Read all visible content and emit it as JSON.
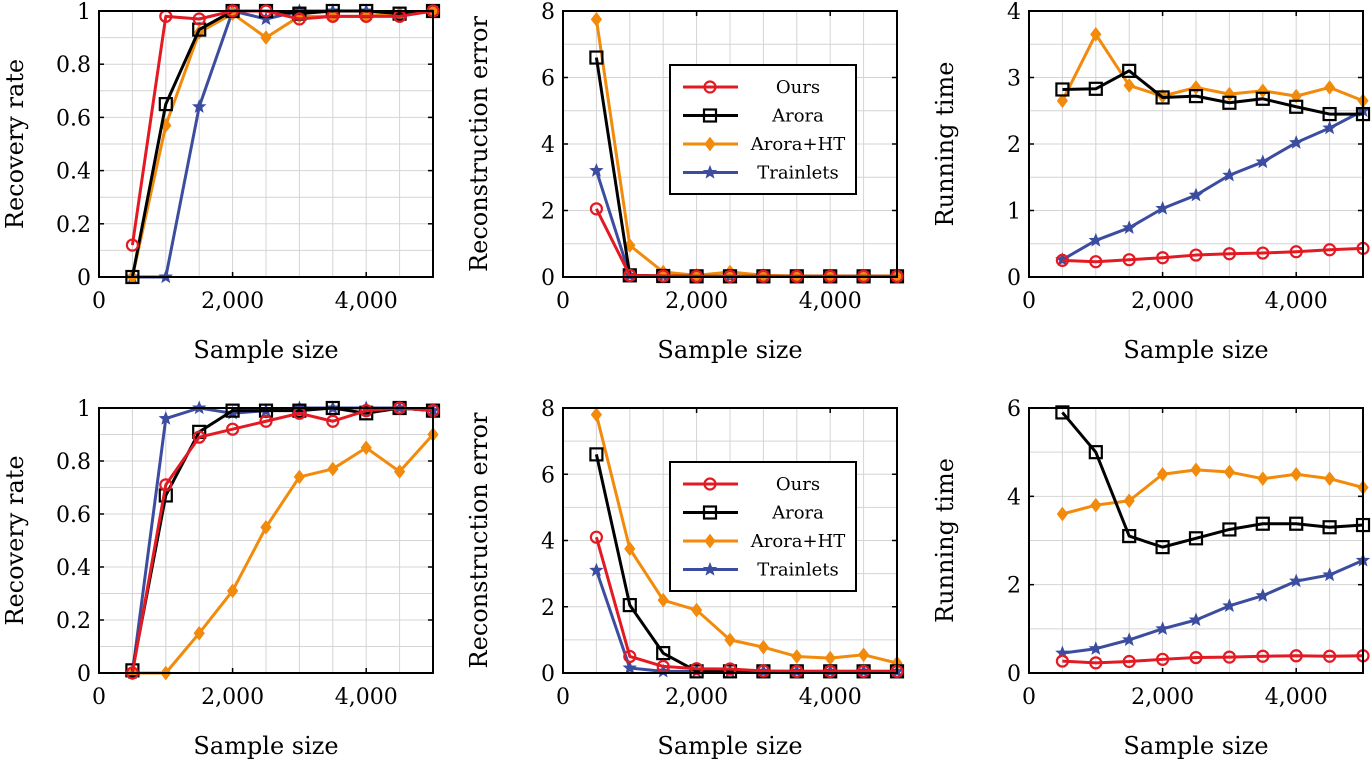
{
  "colors": {
    "Ours": "#e31a23",
    "Arora": "#000000",
    "Arora+HT": "#f28a0c",
    "Trainlets": "#3c4da0"
  },
  "markers": {
    "Ours": "circle",
    "Arora": "square",
    "Arora+HT": "diamond",
    "Trainlets": "star"
  },
  "chart_data": [
    {
      "type": "line",
      "xlabel": "Sample size",
      "ylabel": "Recovery rate",
      "xlim": [
        0,
        5000
      ],
      "ylim": [
        0,
        1
      ],
      "xticks": [
        0,
        2000,
        4000
      ],
      "xtick_labels": [
        "0",
        "2,000",
        "4,000"
      ],
      "yticks": [
        0,
        0.2,
        0.4,
        0.6,
        0.8,
        1
      ],
      "ytick_labels": [
        "0",
        "0.2",
        "0.4",
        "0.6",
        "0.8",
        "1"
      ],
      "x": [
        500,
        1000,
        1500,
        2000,
        2500,
        3000,
        3500,
        4000,
        4500,
        5000
      ],
      "legend": null,
      "series": [
        {
          "name": "Ours",
          "values": [
            0.12,
            0.98,
            0.97,
            1.0,
            1.0,
            0.97,
            0.98,
            0.98,
            0.98,
            1.0
          ]
        },
        {
          "name": "Arora",
          "values": [
            0.0,
            0.65,
            0.93,
            1.0,
            1.0,
            0.99,
            1.0,
            1.0,
            0.99,
            1.0
          ]
        },
        {
          "name": "Arora+HT",
          "values": [
            0.0,
            0.57,
            0.92,
            0.99,
            0.9,
            0.98,
            0.98,
            0.98,
            0.99,
            1.0
          ]
        },
        {
          "name": "Trainlets",
          "values": [
            0.0,
            0.0,
            0.64,
            1.0,
            0.97,
            1.0,
            1.0,
            1.0,
            0.99,
            1.0
          ]
        }
      ]
    },
    {
      "type": "line",
      "xlabel": "Sample size",
      "ylabel": "Reconstruction error",
      "xlim": [
        0,
        5000
      ],
      "ylim": [
        0,
        8
      ],
      "xticks": [
        0,
        2000,
        4000
      ],
      "xtick_labels": [
        "0",
        "2,000",
        "4,000"
      ],
      "yticks": [
        0,
        2,
        4,
        6,
        8
      ],
      "ytick_labels": [
        "0",
        "2",
        "4",
        "6",
        "8"
      ],
      "x": [
        500,
        1000,
        1500,
        2000,
        2500,
        3000,
        3500,
        4000,
        4500,
        5000
      ],
      "legend": "top-right",
      "series": [
        {
          "name": "Ours",
          "values": [
            2.05,
            0.05,
            0.03,
            0.02,
            0.02,
            0.02,
            0.02,
            0.02,
            0.02,
            0.02
          ]
        },
        {
          "name": "Arora",
          "values": [
            6.6,
            0.05,
            0.03,
            0.02,
            0.02,
            0.02,
            0.02,
            0.02,
            0.02,
            0.02
          ]
        },
        {
          "name": "Arora+HT",
          "values": [
            7.75,
            0.95,
            0.15,
            0.05,
            0.15,
            0.05,
            0.03,
            0.03,
            0.03,
            0.03
          ]
        },
        {
          "name": "Trainlets",
          "values": [
            3.2,
            0.05,
            0.03,
            0.02,
            0.02,
            0.02,
            0.02,
            0.02,
            0.02,
            0.02
          ]
        }
      ]
    },
    {
      "type": "line",
      "xlabel": "Sample size",
      "ylabel": "Running time",
      "xlim": [
        0,
        5000
      ],
      "ylim": [
        0,
        4
      ],
      "xticks": [
        0,
        2000,
        4000
      ],
      "xtick_labels": [
        "0",
        "2,000",
        "4,000"
      ],
      "yticks": [
        0,
        1,
        2,
        3,
        4
      ],
      "ytick_labels": [
        "0",
        "1",
        "2",
        "3",
        "4"
      ],
      "x": [
        500,
        1000,
        1500,
        2000,
        2500,
        3000,
        3500,
        4000,
        4500,
        5000
      ],
      "legend": null,
      "series": [
        {
          "name": "Ours",
          "values": [
            0.25,
            0.23,
            0.26,
            0.29,
            0.33,
            0.35,
            0.36,
            0.38,
            0.41,
            0.43
          ]
        },
        {
          "name": "Arora",
          "values": [
            2.82,
            2.83,
            3.1,
            2.7,
            2.72,
            2.62,
            2.68,
            2.56,
            2.45,
            2.45
          ]
        },
        {
          "name": "Arora+HT",
          "values": [
            2.65,
            3.65,
            2.88,
            2.72,
            2.85,
            2.75,
            2.8,
            2.72,
            2.85,
            2.65
          ]
        },
        {
          "name": "Trainlets",
          "values": [
            0.26,
            0.55,
            0.74,
            1.03,
            1.23,
            1.53,
            1.73,
            2.02,
            2.24,
            2.5
          ]
        }
      ]
    },
    {
      "type": "line",
      "xlabel": "Sample size",
      "ylabel": "Recovery rate",
      "xlim": [
        0,
        5000
      ],
      "ylim": [
        0,
        1
      ],
      "xticks": [
        0,
        2000,
        4000
      ],
      "xtick_labels": [
        "0",
        "2,000",
        "4,000"
      ],
      "yticks": [
        0,
        0.2,
        0.4,
        0.6,
        0.8,
        1
      ],
      "ytick_labels": [
        "0",
        "0.2",
        "0.4",
        "0.6",
        "0.8",
        "1"
      ],
      "x": [
        500,
        1000,
        1500,
        2000,
        2500,
        3000,
        3500,
        4000,
        4500,
        5000
      ],
      "legend": null,
      "series": [
        {
          "name": "Ours",
          "values": [
            0.0,
            0.71,
            0.89,
            0.92,
            0.95,
            0.98,
            0.95,
            0.99,
            1.0,
            0.99
          ]
        },
        {
          "name": "Arora",
          "values": [
            0.01,
            0.67,
            0.91,
            0.99,
            0.99,
            0.99,
            1.0,
            0.98,
            1.0,
            0.99
          ]
        },
        {
          "name": "Arora+HT",
          "values": [
            0.0,
            0.0,
            0.15,
            0.31,
            0.55,
            0.74,
            0.77,
            0.85,
            0.76,
            0.9
          ]
        },
        {
          "name": "Trainlets",
          "values": [
            0.0,
            0.96,
            1.0,
            0.98,
            0.99,
            1.0,
            1.0,
            1.0,
            1.0,
            0.99
          ]
        }
      ]
    },
    {
      "type": "line",
      "xlabel": "Sample size",
      "ylabel": "Reconstruction error",
      "xlim": [
        0,
        5000
      ],
      "ylim": [
        0,
        8
      ],
      "xticks": [
        0,
        2000,
        4000
      ],
      "xtick_labels": [
        "0",
        "2,000",
        "4,000"
      ],
      "yticks": [
        0,
        2,
        4,
        6,
        8
      ],
      "ytick_labels": [
        "0",
        "2",
        "4",
        "6",
        "8"
      ],
      "x": [
        500,
        1000,
        1500,
        2000,
        2500,
        3000,
        3500,
        4000,
        4500,
        5000
      ],
      "legend": "top-right",
      "series": [
        {
          "name": "Ours",
          "values": [
            4.1,
            0.5,
            0.2,
            0.13,
            0.12,
            0.06,
            0.05,
            0.05,
            0.05,
            0.05
          ]
        },
        {
          "name": "Arora",
          "values": [
            6.6,
            2.05,
            0.6,
            0.05,
            0.05,
            0.05,
            0.05,
            0.05,
            0.05,
            0.05
          ]
        },
        {
          "name": "Arora+HT",
          "values": [
            7.8,
            3.75,
            2.2,
            1.9,
            1.0,
            0.78,
            0.5,
            0.45,
            0.55,
            0.3
          ]
        },
        {
          "name": "Trainlets",
          "values": [
            3.1,
            0.15,
            0.05,
            0.05,
            0.05,
            0.05,
            0.05,
            0.05,
            0.05,
            0.05
          ]
        }
      ]
    },
    {
      "type": "line",
      "xlabel": "Sample size",
      "ylabel": "Running time",
      "xlim": [
        0,
        5000
      ],
      "ylim": [
        0,
        6
      ],
      "xticks": [
        0,
        2000,
        4000
      ],
      "xtick_labels": [
        "0",
        "2,000",
        "4,000"
      ],
      "yticks": [
        0,
        2,
        4,
        6
      ],
      "ytick_labels": [
        "0",
        "2",
        "4",
        "6"
      ],
      "x": [
        500,
        1000,
        1500,
        2000,
        2500,
        3000,
        3500,
        4000,
        4500,
        5000
      ],
      "legend": null,
      "series": [
        {
          "name": "Ours",
          "values": [
            0.27,
            0.23,
            0.26,
            0.31,
            0.35,
            0.36,
            0.38,
            0.39,
            0.38,
            0.39
          ]
        },
        {
          "name": "Arora",
          "values": [
            5.9,
            5.0,
            3.1,
            2.85,
            3.05,
            3.25,
            3.38,
            3.38,
            3.3,
            3.35
          ]
        },
        {
          "name": "Arora+HT",
          "values": [
            3.6,
            3.8,
            3.9,
            4.5,
            4.6,
            4.55,
            4.4,
            4.5,
            4.4,
            4.2
          ]
        },
        {
          "name": "Trainlets",
          "values": [
            0.45,
            0.55,
            0.75,
            1.0,
            1.2,
            1.52,
            1.75,
            2.08,
            2.22,
            2.55
          ]
        }
      ]
    }
  ]
}
